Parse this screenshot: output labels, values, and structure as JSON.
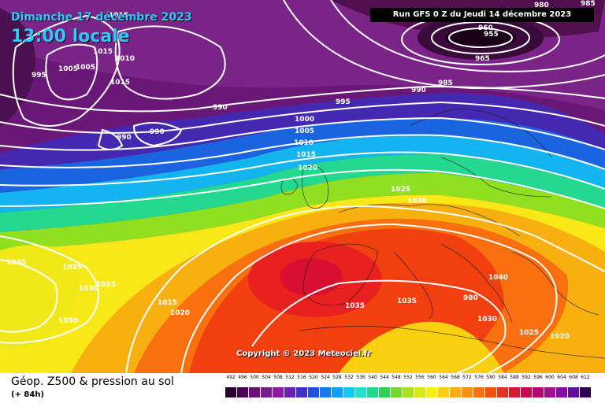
{
  "header": {
    "date": "Dimanche 17 décembre 2023",
    "time": "13:00 locale",
    "run": "Run GFS 0 Z du Jeudi 14 décembre 2023"
  },
  "copyright": "Copyright © 2023 Meteociel.fr",
  "footer": {
    "title": "Géop. Z500 & pression au sol",
    "subtitle": "(+ 84h)"
  },
  "isobar_labels": [
    "1015",
    "1010",
    "995",
    "1005",
    "1005",
    "1015",
    "1015",
    "990",
    "990",
    "990",
    "995",
    "980",
    "960",
    "955",
    "965",
    "985",
    "990",
    "1000",
    "1005",
    "1010",
    "1015",
    "1020",
    "1025",
    "1030",
    "1035",
    "1040",
    "1030",
    "1025",
    "1030",
    "1015",
    "1020",
    "1035",
    "1035",
    "1040",
    "1030",
    "1025",
    "1020",
    "980",
    "985"
  ],
  "legend": {
    "labels": [
      "492",
      "496",
      "500",
      "504",
      "508",
      "512",
      "516",
      "520",
      "524",
      "528",
      "532",
      "536",
      "540",
      "544",
      "548",
      "552",
      "556",
      "560",
      "564",
      "568",
      "572",
      "576",
      "580",
      "584",
      "588",
      "592",
      "596",
      "600",
      "604",
      "608",
      "612"
    ],
    "colors": [
      "#2a0030",
      "#4a0058",
      "#6a1078",
      "#7a1a8c",
      "#8a1aa0",
      "#6a20b0",
      "#4030c8",
      "#2050e0",
      "#1878f0",
      "#10a0f8",
      "#10c8f0",
      "#20e0d0",
      "#20d890",
      "#30d050",
      "#70d830",
      "#a8e020",
      "#d8e818",
      "#f8f010",
      "#f8d010",
      "#f8b010",
      "#f89010",
      "#f87010",
      "#f05010",
      "#e83020",
      "#d81830",
      "#c80850",
      "#b80870",
      "#a01090",
      "#8010a0",
      "#6010a0",
      "#300050"
    ]
  }
}
